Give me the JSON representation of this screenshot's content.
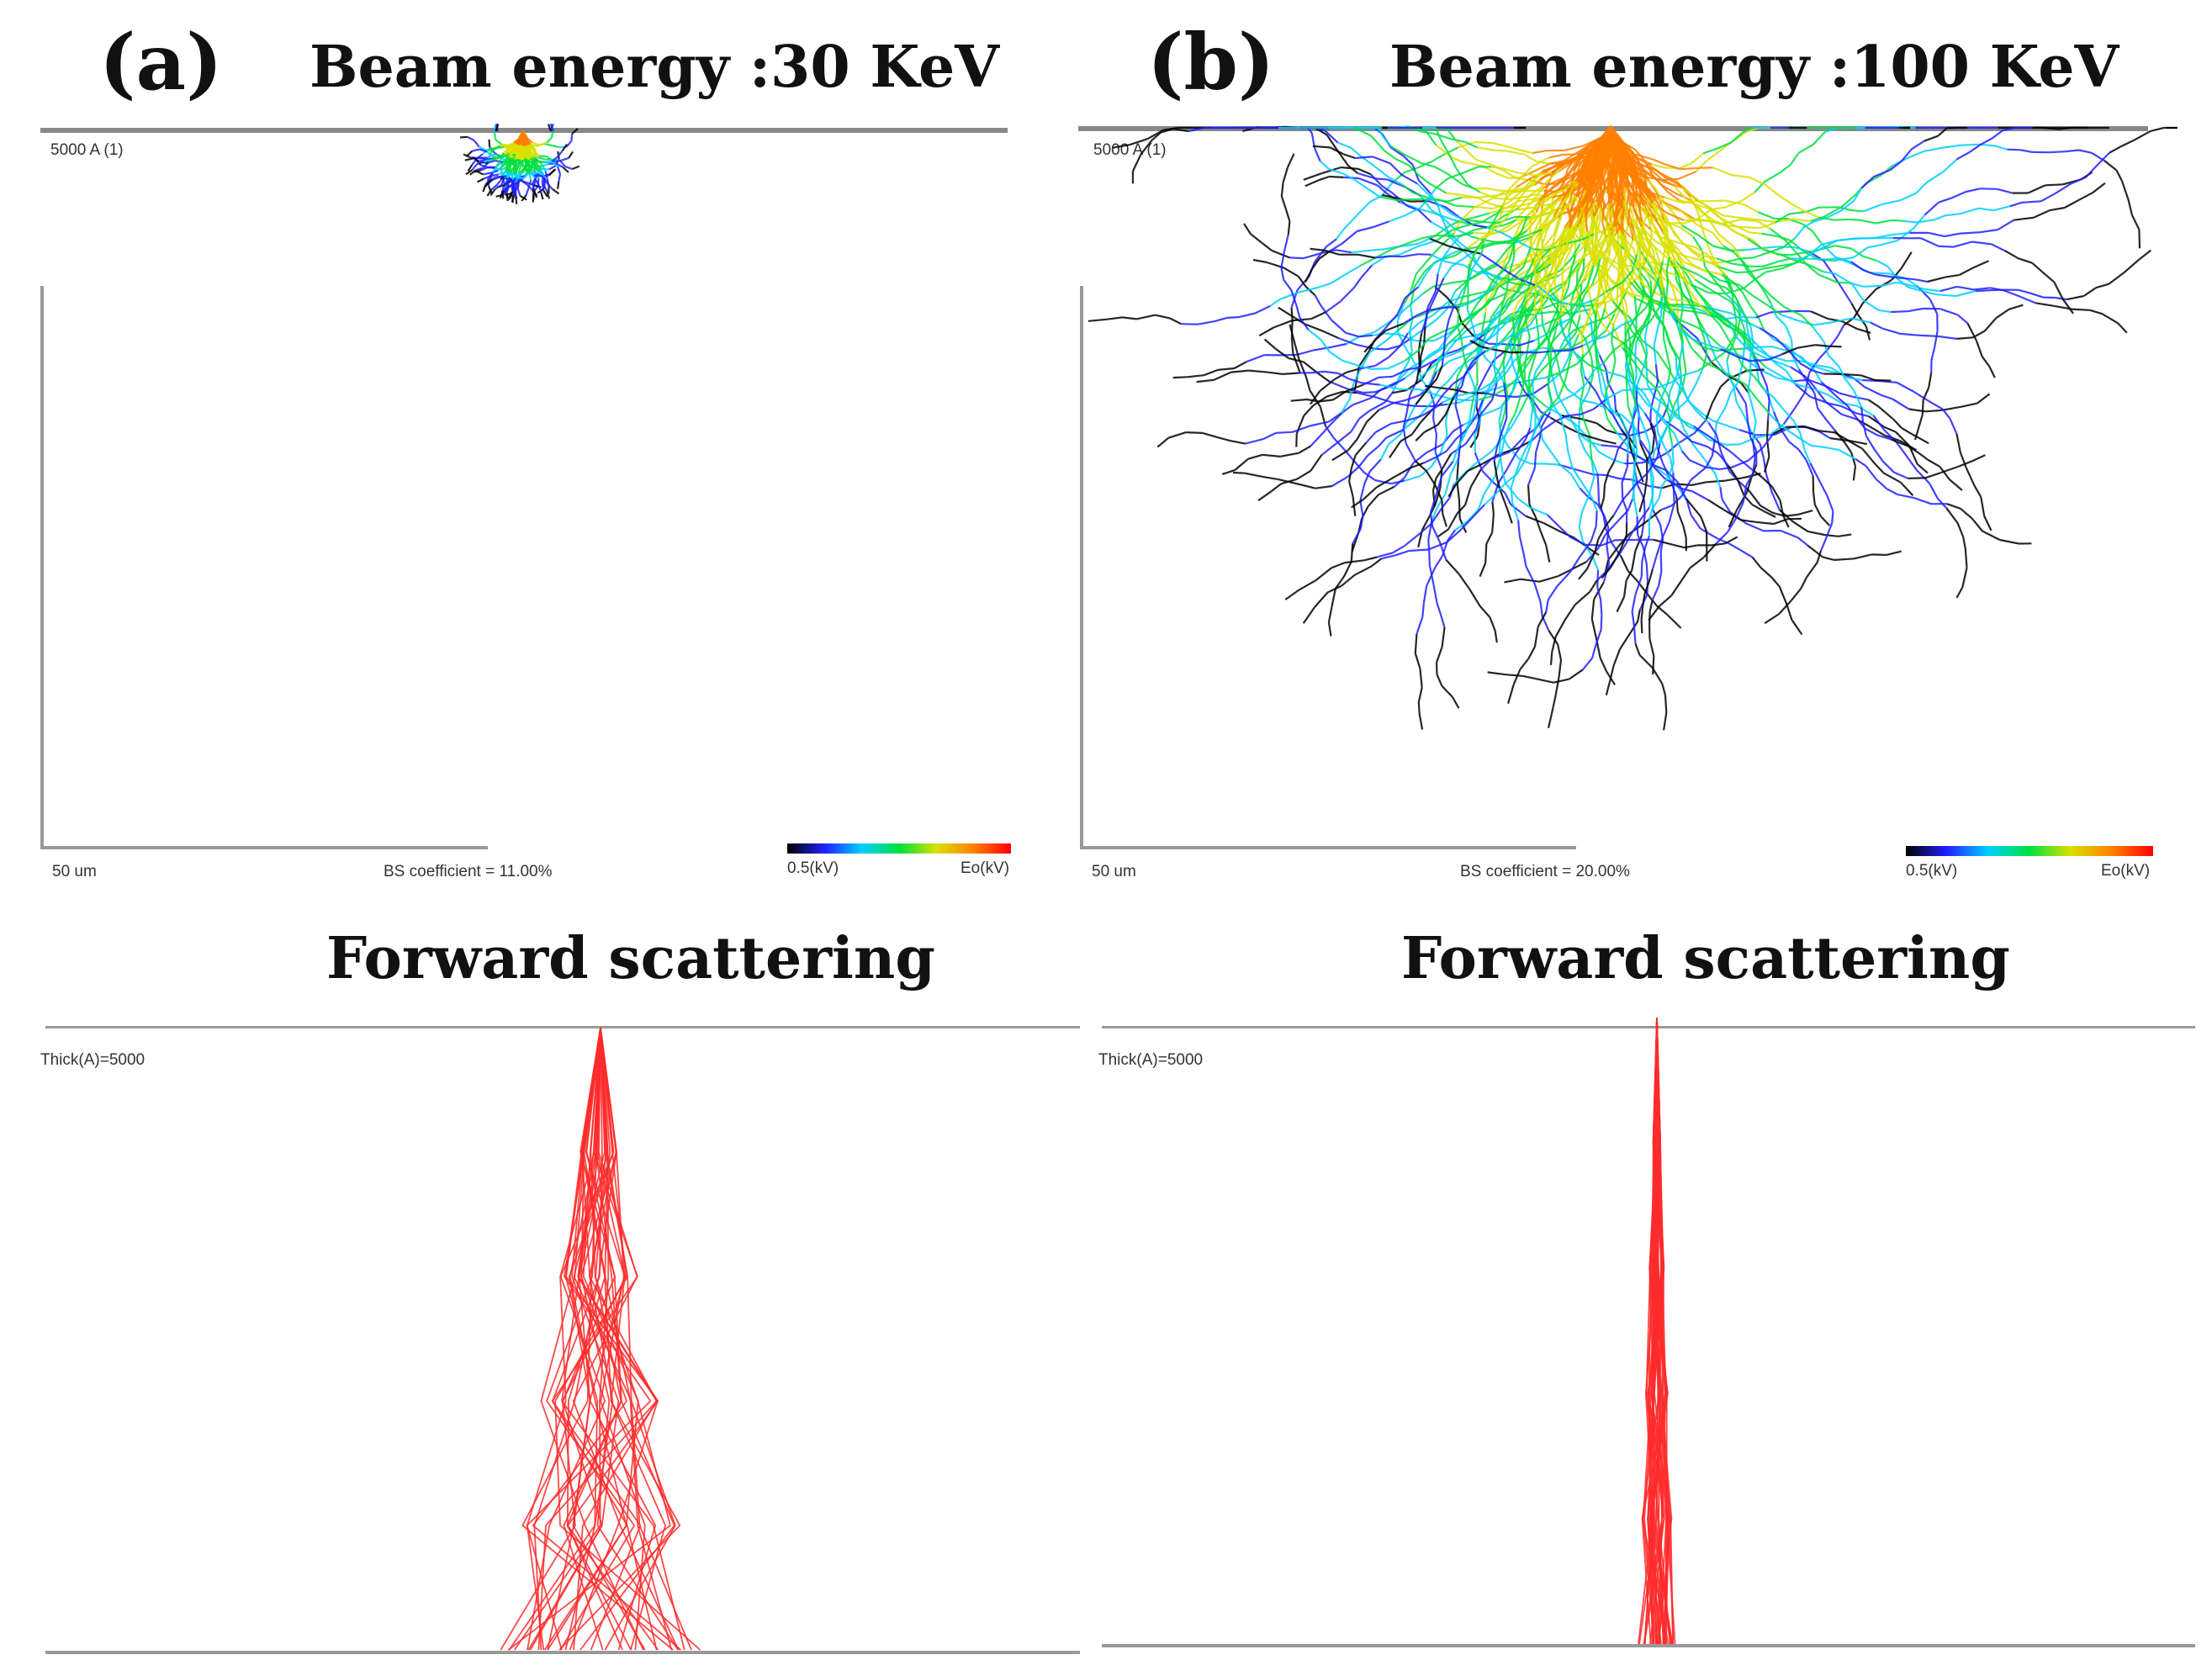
{
  "panels": [
    {
      "letter": "(a)",
      "title": "Beam energy :30 KeV",
      "depth_label": "5000 A (1)",
      "scale_label": "50 um",
      "bs_label": "BS coefficient = 11.00%",
      "cbar_min": "0.5(kV)",
      "cbar_max": "Eo(kV)",
      "forward_title": "Forward scattering",
      "thick_label": "Thick(A)=5000"
    },
    {
      "letter": "(b)",
      "title": "Beam energy :100 KeV",
      "depth_label": "5000 A (1)",
      "scale_label": "50 um",
      "bs_label": "BS coefficient = 20.00%",
      "cbar_min": "0.5(kV)",
      "cbar_max": "Eo(kV)",
      "forward_title": "Forward scattering",
      "thick_label": "Thick(A)=5000"
    }
  ],
  "colors": {
    "forward_track": "#ff2a2a",
    "colorbar_stops": [
      "#000000",
      "#2020ff",
      "#00d0ff",
      "#00e040",
      "#d8e000",
      "#ff8000",
      "#ff0000"
    ]
  },
  "icons": {
    "colorbar": "energy-colorbar",
    "trajectories": "electron-trajectories-image"
  }
}
